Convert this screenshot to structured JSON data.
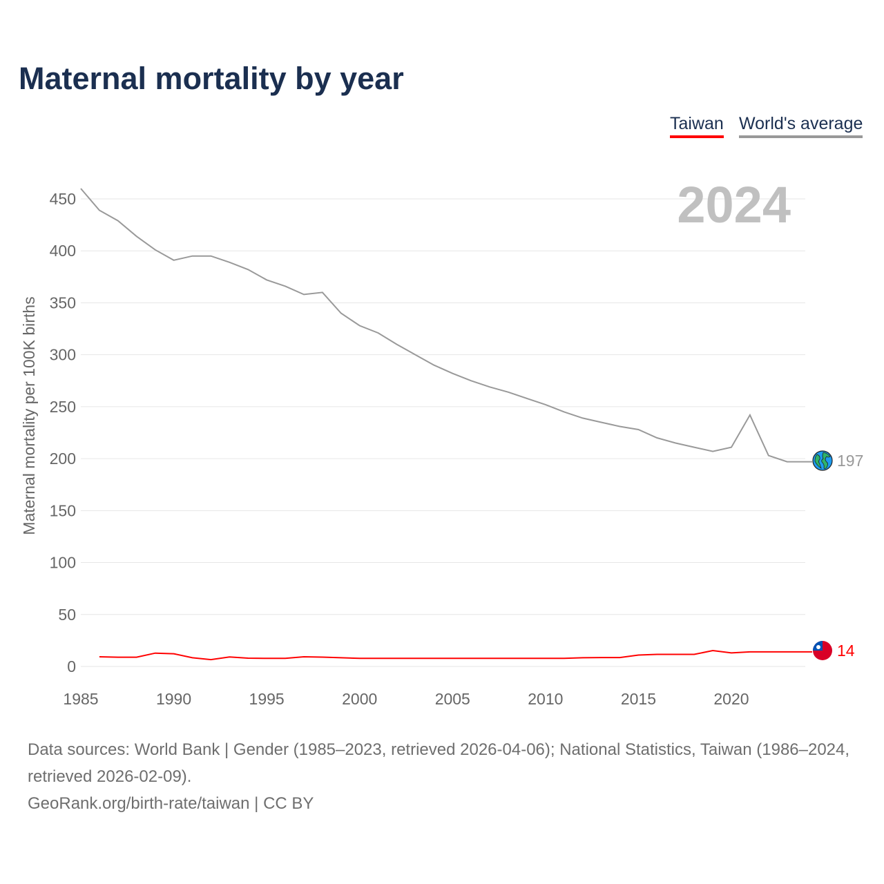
{
  "title": "Maternal mortality by year",
  "legend": [
    {
      "label": "Taiwan",
      "color": "#ff0000"
    },
    {
      "label": "World's average",
      "color": "#999999"
    }
  ],
  "footer": {
    "sources": "Data sources: World Bank | Gender (1985–2023, retrieved 2026-04-06); National Statistics, Taiwan (1986–2024, retrieved 2026-02-09).",
    "credit": "GeoRank.org/birth-rate/taiwan | CC BY"
  },
  "chart_data": {
    "type": "line",
    "title": "Maternal mortality by year",
    "current_year_label": "2024",
    "xlabel": "",
    "ylabel": "Maternal mortality per 100K births",
    "xlim": [
      1985,
      2024
    ],
    "ylim": [
      0,
      450
    ],
    "xticks": [
      1985,
      1990,
      1995,
      2000,
      2005,
      2010,
      2015,
      2020
    ],
    "yticks": [
      0,
      50,
      100,
      150,
      200,
      250,
      300,
      350,
      400,
      450
    ],
    "grid": true,
    "legend_position": "top-right",
    "series": [
      {
        "name": "World's average",
        "color": "#999999",
        "end_label": "197",
        "end_icon": "globe-icon",
        "x": [
          1985,
          1986,
          1987,
          1988,
          1989,
          1990,
          1991,
          1992,
          1993,
          1994,
          1995,
          1996,
          1997,
          1998,
          1999,
          2000,
          2001,
          2002,
          2003,
          2004,
          2005,
          2006,
          2007,
          2008,
          2009,
          2010,
          2011,
          2012,
          2013,
          2014,
          2015,
          2016,
          2017,
          2018,
          2019,
          2020,
          2021,
          2022,
          2023
        ],
        "values": [
          460,
          439,
          429,
          414,
          401,
          391,
          395,
          395,
          389,
          382,
          372,
          366,
          358,
          360,
          340,
          328,
          321,
          310,
          300,
          290,
          282,
          275,
          269,
          264,
          258,
          252,
          245,
          239,
          235,
          231,
          228,
          220,
          215,
          211,
          207,
          211,
          242,
          203,
          197
        ]
      },
      {
        "name": "Taiwan",
        "color": "#ff0000",
        "end_label": "14",
        "end_icon": "taiwan-flag-icon",
        "x": [
          1986,
          1987,
          1988,
          1989,
          1990,
          1991,
          1992,
          1993,
          1994,
          1995,
          1996,
          1997,
          1998,
          1999,
          2000,
          2001,
          2002,
          2003,
          2004,
          2005,
          2006,
          2007,
          2008,
          2009,
          2010,
          2011,
          2012,
          2013,
          2014,
          2015,
          2016,
          2017,
          2018,
          2019,
          2020,
          2021,
          2022,
          2023,
          2024
        ],
        "values": [
          9.3,
          8.9,
          8.9,
          12.8,
          12.2,
          8.4,
          6.6,
          9.1,
          8,
          7.8,
          7.8,
          9.3,
          9,
          8.4,
          7.8,
          7.8,
          7.8,
          7.8,
          7.8,
          7.8,
          7.8,
          7.8,
          7.8,
          7.8,
          7.8,
          7.8,
          8.4,
          8.6,
          8.6,
          11,
          11.6,
          11.6,
          11.6,
          15.3,
          13,
          14,
          14,
          14,
          14
        ]
      }
    ]
  }
}
